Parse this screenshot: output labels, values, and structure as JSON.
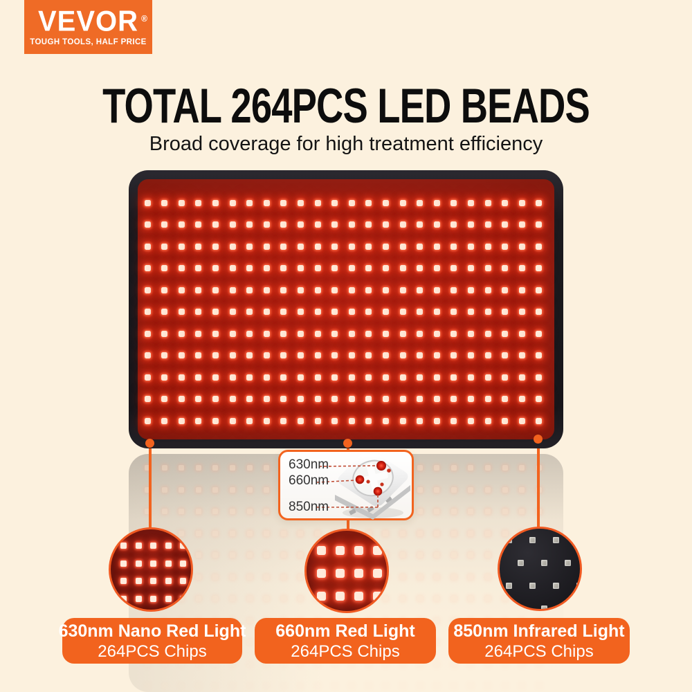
{
  "brand": {
    "name": "VEVOR",
    "registered": "®",
    "tagline": "TOUGH TOOLS, HALF PRICE"
  },
  "header": {
    "title": "TOTAL 264PCS LED BEADS",
    "subtitle": "Broad coverage for high treatment efficiency"
  },
  "panel": {
    "total_leds": 264,
    "grid_cols": 24,
    "grid_rows": 11
  },
  "callout": {
    "labels": [
      "630nm",
      "660nm",
      "850nm"
    ]
  },
  "features": [
    {
      "title": "630nm Nano Red Light",
      "chips": "264PCS Chips"
    },
    {
      "title": "660nm Red Light",
      "chips": "264PCS Chips"
    },
    {
      "title": "850nm Infrared Light",
      "chips": "264PCS Chips"
    }
  ],
  "colors": {
    "accent_orange": "#F2631E",
    "logo_orange": "#EF6B26",
    "background_cream": "#FCF1DE",
    "panel_red": "#8E1C11",
    "panel_black": "#1B1A1E",
    "infrared_black": "#201F24",
    "led_white": "#FFEBD9"
  }
}
